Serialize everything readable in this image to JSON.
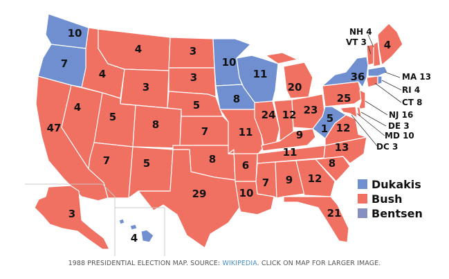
{
  "colors": {
    "dukakis": "#6f8fd0",
    "bush": "#f07162",
    "bentsen": "#8590c0",
    "borders": "#ffffff",
    "caption_text": "#555555",
    "caption_link": "#4a8fc4"
  },
  "legend": {
    "items": [
      {
        "label": "Dukakis",
        "color_key": "dukakis"
      },
      {
        "label": "Bush",
        "color_key": "bush"
      },
      {
        "label": "Bentsen",
        "color_key": "bentsen"
      }
    ]
  },
  "caption": {
    "before": "1988 PRESIDENTIAL ELECTION MAP. SOURCE: ",
    "link": "WIKIPEDIA",
    "after": ". CLICK ON MAP FOR LARGER IMAGE."
  },
  "electoral_votes": {
    "WA": "10",
    "OR": "7",
    "CA": "47",
    "NV": "4",
    "ID": "4",
    "MT": "4",
    "WY": "3",
    "UT": "5",
    "AZ": "7",
    "CO": "8",
    "NM": "5",
    "ND": "3",
    "SD": "3",
    "NE": "5",
    "KS": "7",
    "OK": "8",
    "TX": "29",
    "MN": "10",
    "IA": "8",
    "MO": "11",
    "AR": "6",
    "LA": "10",
    "WI": "11",
    "IL": "24",
    "MI": "20",
    "IN": "12",
    "OH": "23",
    "KY": "9",
    "TN": "11",
    "MS": "7",
    "AL": "9",
    "GA": "12",
    "FL": "21",
    "SC": "8",
    "NC": "13",
    "VA": "12",
    "WV": "5",
    "PA": "25",
    "NY": "36",
    "ME": "4",
    "AK": "3",
    "HI": "4",
    "WV_split": "1"
  },
  "callouts": {
    "NH": "NH 4",
    "VT": "VT 3",
    "MA": "MA 13",
    "RI": "RI 4",
    "CT": "CT 8",
    "NJ": "NJ 16",
    "DE": "DE 3",
    "MD": "MD 10",
    "DC": "DC 3"
  }
}
